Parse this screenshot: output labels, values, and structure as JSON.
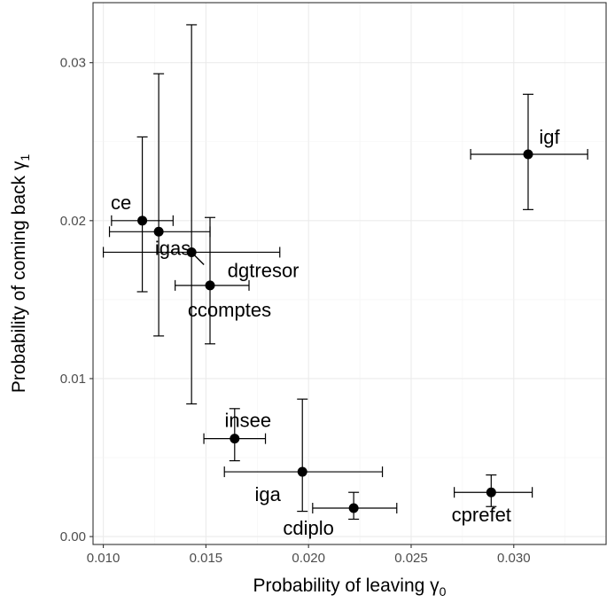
{
  "chart_data": {
    "type": "scatter",
    "title": "",
    "xlabel": "Probability of leaving γ",
    "xlabel_sub": "0",
    "ylabel": "Probability of coming back γ",
    "ylabel_sub": "1",
    "xlim": [
      0.0095,
      0.0345
    ],
    "ylim": [
      -0.0005,
      0.0338
    ],
    "x_ticks": [
      0.01,
      0.015,
      0.02,
      0.025,
      0.03
    ],
    "x_tick_labels": [
      "0.010",
      "0.015",
      "0.020",
      "0.025",
      "0.030"
    ],
    "y_ticks": [
      0.0,
      0.01,
      0.02,
      0.03
    ],
    "y_tick_labels": [
      "0.00",
      "0.01",
      "0.02",
      "0.03"
    ],
    "grid": true,
    "point_color": "#000000",
    "points": [
      {
        "label": "ce",
        "x": 0.0119,
        "y": 0.02,
        "x_err": [
          0.0104,
          0.0134
        ],
        "y_err": [
          0.0155,
          0.0253
        ]
      },
      {
        "label": "igas",
        "x": 0.0127,
        "y": 0.0193,
        "x_err": [
          0.0103,
          0.0152
        ],
        "y_err": [
          0.0127,
          0.0293
        ]
      },
      {
        "label": "dgtresor",
        "x": 0.0143,
        "y": 0.018,
        "x_err": [
          0.01,
          0.0186
        ],
        "y_err": [
          0.0084,
          0.0324
        ]
      },
      {
        "label": "ccomptes",
        "x": 0.0152,
        "y": 0.0159,
        "x_err": [
          0.0135,
          0.0171
        ],
        "y_err": [
          0.0122,
          0.0202
        ]
      },
      {
        "label": "igf",
        "x": 0.0307,
        "y": 0.0242,
        "x_err": [
          0.0279,
          0.0336
        ],
        "y_err": [
          0.0207,
          0.028
        ]
      },
      {
        "label": "insee",
        "x": 0.0164,
        "y": 0.0062,
        "x_err": [
          0.0149,
          0.0179
        ],
        "y_err": [
          0.0048,
          0.0081
        ]
      },
      {
        "label": "iga",
        "x": 0.0197,
        "y": 0.0041,
        "x_err": [
          0.0159,
          0.0236
        ],
        "y_err": [
          0.0016,
          0.0087
        ]
      },
      {
        "label": "cdiplo",
        "x": 0.0222,
        "y": 0.0018,
        "x_err": [
          0.0202,
          0.0243
        ],
        "y_err": [
          0.0011,
          0.0028
        ]
      },
      {
        "label": "cprefet",
        "x": 0.0289,
        "y": 0.0028,
        "x_err": [
          0.0271,
          0.0309
        ],
        "y_err": [
          0.0019,
          0.0039
        ]
      }
    ]
  }
}
